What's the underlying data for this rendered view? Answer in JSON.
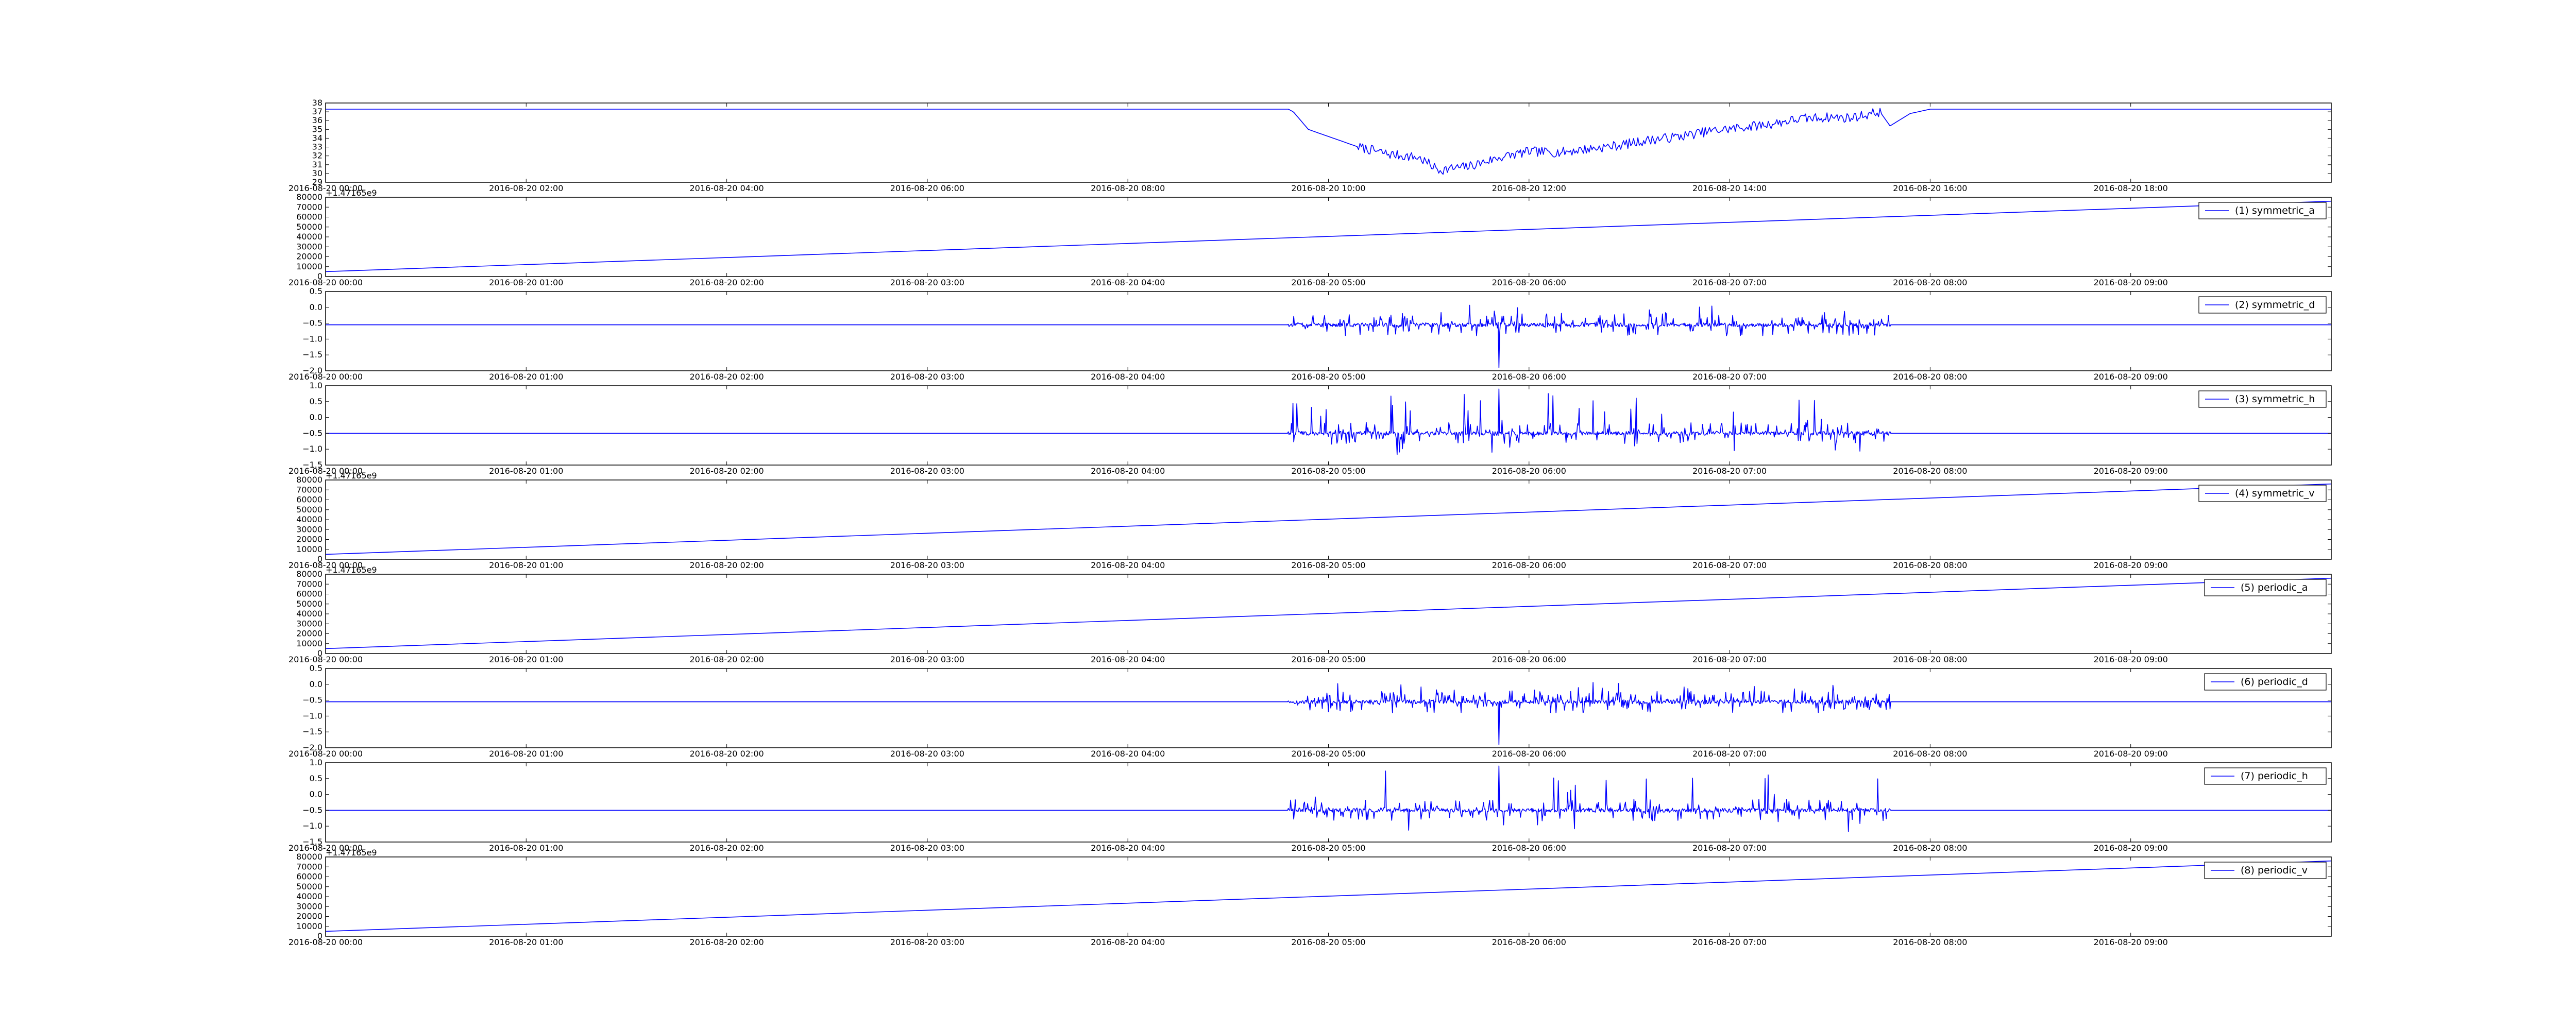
{
  "colors": {
    "line": "#0000ff",
    "frame": "#000000",
    "background": "#ffffff"
  },
  "chart_data": [
    {
      "type": "line",
      "panel": 0,
      "title": "",
      "xlabel": "",
      "ylabel": "",
      "ylim": [
        29,
        38
      ],
      "yticks": [
        "29",
        "30",
        "31",
        "32",
        "33",
        "34",
        "35",
        "36",
        "37",
        "38"
      ],
      "xtick_labels": [
        "2016-08-20 00:00",
        "2016-08-20 02:00",
        "2016-08-20 04:00",
        "2016-08-20 06:00",
        "2016-08-20 08:00",
        "2016-08-20 10:00",
        "2016-08-20 12:00",
        "2016-08-20 14:00",
        "2016-08-20 16:00",
        "2016-08-20 18:00"
      ],
      "xlim_hours": [
        0,
        20
      ],
      "series": [
        {
          "x_hours": [
            0,
            9.6,
            9.65,
            9.8,
            10.0,
            10.3,
            10.6,
            10.9,
            11.1,
            11.4,
            11.7,
            12.0,
            12.3,
            12.6,
            12.9,
            13.2,
            13.5,
            13.8,
            14.1,
            14.4,
            14.7,
            15.0,
            15.2,
            15.5,
            15.6,
            15.8,
            16.0,
            18.0,
            20.0
          ],
          "values": [
            37.3,
            37.3,
            37.0,
            35.0,
            34.2,
            33.0,
            32.2,
            31.8,
            30.4,
            30.8,
            31.8,
            32.5,
            32.4,
            32.8,
            33.2,
            33.8,
            34.2,
            34.8,
            35.2,
            35.6,
            36.2,
            36.4,
            36.3,
            37.0,
            35.4,
            36.8,
            37.3,
            37.3,
            37.3
          ],
          "noise_start_hours": 10.3,
          "noise_end_hours": 15.5,
          "noise_amplitude": 0.55
        }
      ]
    },
    {
      "type": "line",
      "panel": 1,
      "offset_text": "+1.47165e9",
      "ylim": [
        0,
        80000
      ],
      "yticks": [
        "0",
        "10000",
        "20000",
        "30000",
        "40000",
        "50000",
        "60000",
        "70000",
        "80000"
      ],
      "xtick_labels": [
        "2016-08-20 00:00",
        "2016-08-20 01:00",
        "2016-08-20 02:00",
        "2016-08-20 03:00",
        "2016-08-20 04:00",
        "2016-08-20 05:00",
        "2016-08-20 06:00",
        "2016-08-20 07:00",
        "2016-08-20 08:00",
        "2016-08-20 09:00"
      ],
      "xlim_hours": [
        0,
        10
      ],
      "legend_label": "(1) symmetric_a",
      "series": [
        {
          "name": "(1) symmetric_a",
          "x_hours": [
            0,
            10
          ],
          "values": [
            5000,
            76000
          ]
        }
      ]
    },
    {
      "type": "line",
      "panel": 2,
      "ylim": [
        -2.0,
        0.5
      ],
      "yticks": [
        "−2.0",
        "−1.5",
        "−1.0",
        "−0.5",
        "0.0",
        "0.5"
      ],
      "xtick_labels": [
        "2016-08-20 00:00",
        "2016-08-20 01:00",
        "2016-08-20 02:00",
        "2016-08-20 03:00",
        "2016-08-20 04:00",
        "2016-08-20 05:00",
        "2016-08-20 06:00",
        "2016-08-20 07:00",
        "2016-08-20 08:00",
        "2016-08-20 09:00"
      ],
      "xlim_hours": [
        0,
        10
      ],
      "legend_label": "(2) symmetric_d",
      "series": [
        {
          "name": "(2) symmetric_d",
          "baseline": -0.55,
          "noise_start_hours": 4.8,
          "noise_end_hours": 7.8,
          "noise_amplitude": 0.35,
          "spike_max": 0.15,
          "spike_min": -1.9,
          "spike_min_hours": 5.85
        }
      ]
    },
    {
      "type": "line",
      "panel": 3,
      "ylim": [
        -1.5,
        1.0
      ],
      "yticks": [
        "−1.5",
        "−1.0",
        "−0.5",
        "0.0",
        "0.5",
        "1.0"
      ],
      "xtick_labels": [
        "2016-08-20 00:00",
        "2016-08-20 01:00",
        "2016-08-20 02:00",
        "2016-08-20 03:00",
        "2016-08-20 04:00",
        "2016-08-20 05:00",
        "2016-08-20 06:00",
        "2016-08-20 07:00",
        "2016-08-20 08:00",
        "2016-08-20 09:00"
      ],
      "xlim_hours": [
        0,
        10
      ],
      "legend_label": "(3) symmetric_h",
      "series": [
        {
          "name": "(3) symmetric_h",
          "baseline": -0.5,
          "noise_start_hours": 4.8,
          "noise_end_hours": 7.8,
          "noise_amplitude": 0.35,
          "spike_max": 0.9,
          "spike_max_hours": 5.85,
          "spike_min": -1.25
        }
      ]
    },
    {
      "type": "line",
      "panel": 4,
      "offset_text": "+1.47165e9",
      "ylim": [
        0,
        80000
      ],
      "yticks": [
        "0",
        "10000",
        "20000",
        "30000",
        "40000",
        "50000",
        "60000",
        "70000",
        "80000"
      ],
      "xtick_labels": [
        "2016-08-20 00:00",
        "2016-08-20 01:00",
        "2016-08-20 02:00",
        "2016-08-20 03:00",
        "2016-08-20 04:00",
        "2016-08-20 05:00",
        "2016-08-20 06:00",
        "2016-08-20 07:00",
        "2016-08-20 08:00",
        "2016-08-20 09:00"
      ],
      "xlim_hours": [
        0,
        10
      ],
      "legend_label": "(4) symmetric_v",
      "series": [
        {
          "name": "(4) symmetric_v",
          "x_hours": [
            0,
            10
          ],
          "values": [
            5000,
            76000
          ]
        }
      ]
    },
    {
      "type": "line",
      "panel": 5,
      "offset_text": "+1.47165e9",
      "ylim": [
        0,
        80000
      ],
      "yticks": [
        "0",
        "10000",
        "20000",
        "30000",
        "40000",
        "50000",
        "60000",
        "70000",
        "80000"
      ],
      "xtick_labels": [
        "2016-08-20 00:00",
        "2016-08-20 01:00",
        "2016-08-20 02:00",
        "2016-08-20 03:00",
        "2016-08-20 04:00",
        "2016-08-20 05:00",
        "2016-08-20 06:00",
        "2016-08-20 07:00",
        "2016-08-20 08:00",
        "2016-08-20 09:00"
      ],
      "xlim_hours": [
        0,
        10
      ],
      "legend_label": "(5) periodic_a",
      "series": [
        {
          "name": "(5) periodic_a",
          "x_hours": [
            0,
            10
          ],
          "values": [
            5000,
            76000
          ]
        }
      ]
    },
    {
      "type": "line",
      "panel": 6,
      "ylim": [
        -2.0,
        0.5
      ],
      "yticks": [
        "−2.0",
        "−1.5",
        "−1.0",
        "−0.5",
        "0.0",
        "0.5"
      ],
      "xtick_labels": [
        "2016-08-20 00:00",
        "2016-08-20 01:00",
        "2016-08-20 02:00",
        "2016-08-20 03:00",
        "2016-08-20 04:00",
        "2016-08-20 05:00",
        "2016-08-20 06:00",
        "2016-08-20 07:00",
        "2016-08-20 08:00",
        "2016-08-20 09:00"
      ],
      "xlim_hours": [
        0,
        10
      ],
      "legend_label": "(6) periodic_d",
      "series": [
        {
          "name": "(6) periodic_d",
          "baseline": -0.55,
          "noise_start_hours": 4.8,
          "noise_end_hours": 7.8,
          "noise_amplitude": 0.35,
          "spike_max": 0.15,
          "spike_min": -1.9,
          "spike_min_hours": 5.85
        }
      ]
    },
    {
      "type": "line",
      "panel": 7,
      "ylim": [
        -1.5,
        1.0
      ],
      "yticks": [
        "−1.5",
        "−1.0",
        "−0.5",
        "0.0",
        "0.5",
        "1.0"
      ],
      "xtick_labels": [
        "2016-08-20 00:00",
        "2016-08-20 01:00",
        "2016-08-20 02:00",
        "2016-08-20 03:00",
        "2016-08-20 04:00",
        "2016-08-20 05:00",
        "2016-08-20 06:00",
        "2016-08-20 07:00",
        "2016-08-20 08:00",
        "2016-08-20 09:00"
      ],
      "xlim_hours": [
        0,
        10
      ],
      "legend_label": "(7) periodic_h",
      "series": [
        {
          "name": "(7) periodic_h",
          "baseline": -0.5,
          "noise_start_hours": 4.8,
          "noise_end_hours": 7.8,
          "noise_amplitude": 0.35,
          "spike_max": 0.9,
          "spike_max_hours": 5.85,
          "spike_min": -1.25
        }
      ]
    },
    {
      "type": "line",
      "panel": 8,
      "offset_text": "+1.47165e9",
      "ylim": [
        0,
        80000
      ],
      "yticks": [
        "0",
        "10000",
        "20000",
        "30000",
        "40000",
        "50000",
        "60000",
        "70000",
        "80000"
      ],
      "xtick_labels": [
        "2016-08-20 00:00",
        "2016-08-20 01:00",
        "2016-08-20 02:00",
        "2016-08-20 03:00",
        "2016-08-20 04:00",
        "2016-08-20 05:00",
        "2016-08-20 06:00",
        "2016-08-20 07:00",
        "2016-08-20 08:00",
        "2016-08-20 09:00"
      ],
      "xlim_hours": [
        0,
        10
      ],
      "legend_label": "(8) periodic_v",
      "series": [
        {
          "name": "(8) periodic_v",
          "x_hours": [
            0,
            10
          ],
          "values": [
            5000,
            76000
          ]
        }
      ]
    }
  ]
}
